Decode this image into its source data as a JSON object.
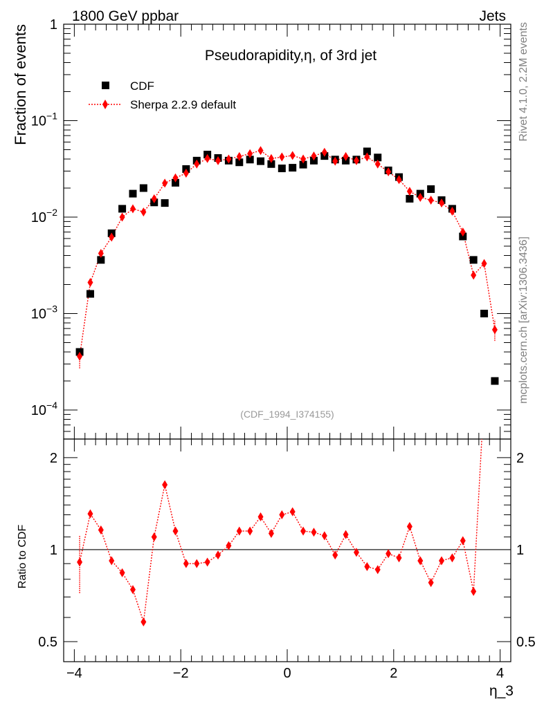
{
  "header": {
    "left": "1800 GeV ppbar",
    "right": "Jets"
  },
  "side_labels": {
    "rivet": "Rivet 4.1.0,  2.2M events",
    "source": "mcplots.cern.ch [arXiv:1306.3436]"
  },
  "colors": {
    "data": "#000000",
    "mc": "#ff0000",
    "side_text": "#808080"
  },
  "chart_data": [
    {
      "type": "scatter",
      "panel": "main",
      "title": "Pseudorapidity,η, of 3rd jet",
      "ylabel": "Fraction of events",
      "xlabel": "",
      "xlim": [
        -4.2,
        4.2
      ],
      "ylim": [
        5e-05,
        1
      ],
      "yscale": "log",
      "ytick_labels": [
        {
          "value": 1,
          "base": "1",
          "exp": ""
        },
        {
          "value": 0.1,
          "base": "10",
          "exp": "−1"
        },
        {
          "value": 0.01,
          "base": "10",
          "exp": "−2"
        },
        {
          "value": 0.001,
          "base": "10",
          "exp": "−3"
        },
        {
          "value": 0.0001,
          "base": "10",
          "exp": "−4"
        }
      ],
      "analysis_label": "(CDF_1994_I374155)",
      "legend": {
        "position": "top-left",
        "entries": [
          "CDF",
          "Sherpa 2.2.9 default"
        ]
      },
      "series": [
        {
          "name": "CDF",
          "marker": "square",
          "x": [
            -3.9,
            -3.7,
            -3.5,
            -3.3,
            -3.1,
            -2.9,
            -2.7,
            -2.5,
            -2.3,
            -2.1,
            -1.9,
            -1.7,
            -1.5,
            -1.3,
            -1.1,
            -0.9,
            -0.7,
            -0.5,
            -0.3,
            -0.1,
            0.1,
            0.3,
            0.5,
            0.7,
            0.9,
            1.1,
            1.3,
            1.5,
            1.7,
            1.9,
            2.1,
            2.3,
            2.5,
            2.7,
            2.9,
            3.1,
            3.3,
            3.5,
            3.7,
            3.9
          ],
          "values": [
            0.0004,
            0.0016,
            0.0036,
            0.0068,
            0.0122,
            0.0175,
            0.02,
            0.0142,
            0.014,
            0.0227,
            0.0315,
            0.0385,
            0.0445,
            0.041,
            0.0385,
            0.037,
            0.0395,
            0.038,
            0.0355,
            0.032,
            0.0325,
            0.035,
            0.0385,
            0.043,
            0.0395,
            0.0385,
            0.0395,
            0.048,
            0.0415,
            0.0305,
            0.026,
            0.0155,
            0.0175,
            0.0195,
            0.015,
            0.0122,
            0.0063,
            0.0036,
            0.001,
            0.0002
          ]
        },
        {
          "name": "Sherpa 2.2.9 default",
          "marker": "diamond",
          "line": "dotted",
          "x": [
            -3.9,
            -3.7,
            -3.5,
            -3.3,
            -3.1,
            -2.9,
            -2.7,
            -2.5,
            -2.3,
            -2.1,
            -1.9,
            -1.7,
            -1.5,
            -1.3,
            -1.1,
            -0.9,
            -0.7,
            -0.5,
            -0.3,
            -0.1,
            0.1,
            0.3,
            0.5,
            0.7,
            0.9,
            1.1,
            1.3,
            1.5,
            1.7,
            1.9,
            2.1,
            2.3,
            2.5,
            2.7,
            2.9,
            3.1,
            3.3,
            3.5,
            3.7,
            3.9
          ],
          "values": [
            0.00036,
            0.0021,
            0.0042,
            0.0062,
            0.01,
            0.0122,
            0.0113,
            0.0155,
            0.0225,
            0.0255,
            0.0285,
            0.0355,
            0.0405,
            0.0385,
            0.04,
            0.0425,
            0.0455,
            0.049,
            0.0405,
            0.042,
            0.0435,
            0.04,
            0.043,
            0.047,
            0.038,
            0.0425,
            0.0385,
            0.042,
            0.0355,
            0.0295,
            0.0245,
            0.0185,
            0.016,
            0.015,
            0.014,
            0.0115,
            0.007,
            0.0025,
            0.0033,
            0.00068
          ],
          "err_low": [
            0.00027,
            null,
            null,
            null,
            null,
            null,
            null,
            null,
            null,
            null,
            null,
            null,
            null,
            null,
            null,
            null,
            null,
            null,
            null,
            null,
            null,
            null,
            null,
            null,
            null,
            null,
            null,
            null,
            null,
            null,
            null,
            null,
            null,
            null,
            null,
            null,
            null,
            null,
            null,
            0.00052
          ],
          "err_high": [
            0.00043,
            null,
            null,
            null,
            null,
            null,
            null,
            null,
            null,
            null,
            null,
            null,
            null,
            null,
            null,
            null,
            null,
            null,
            null,
            null,
            null,
            null,
            null,
            null,
            null,
            null,
            null,
            null,
            null,
            null,
            null,
            null,
            null,
            null,
            null,
            null,
            null,
            null,
            null,
            0.00086
          ]
        }
      ]
    },
    {
      "type": "line",
      "panel": "ratio",
      "ylabel": "Ratio to CDF",
      "xlabel": "η_3",
      "xlim": [
        -4.2,
        4.2
      ],
      "ylim": [
        0.43,
        2.3
      ],
      "yscale": "log",
      "xtick_labels": [
        "−4",
        "−2",
        "0",
        "2",
        "4"
      ],
      "xtick_values": [
        -4,
        -2,
        0,
        2,
        4
      ],
      "ytick_labels": [
        "0.5",
        "1",
        "2"
      ],
      "ytick_values": [
        0.5,
        1,
        2
      ],
      "reference_line": 1,
      "series": [
        {
          "name": "Sherpa 2.2.9 default / CDF",
          "marker": "diamond",
          "line": "dotted",
          "x": [
            -3.9,
            -3.7,
            -3.5,
            -3.3,
            -3.1,
            -2.9,
            -2.7,
            -2.5,
            -2.3,
            -2.1,
            -1.9,
            -1.7,
            -1.5,
            -1.3,
            -1.1,
            -0.9,
            -0.7,
            -0.5,
            -0.3,
            -0.1,
            0.1,
            0.3,
            0.5,
            0.7,
            0.9,
            1.1,
            1.3,
            1.5,
            1.7,
            1.9,
            2.1,
            2.3,
            2.5,
            2.7,
            2.9,
            3.1,
            3.3,
            3.5
          ],
          "values": [
            0.91,
            1.31,
            1.16,
            0.92,
            0.84,
            0.74,
            0.58,
            1.1,
            1.63,
            1.15,
            0.9,
            0.9,
            0.91,
            0.96,
            1.03,
            1.15,
            1.15,
            1.28,
            1.13,
            1.3,
            1.33,
            1.15,
            1.14,
            1.11,
            0.96,
            1.12,
            0.98,
            0.88,
            0.86,
            0.97,
            0.94,
            1.19,
            0.92,
            0.78,
            0.92,
            0.94,
            1.07,
            0.73
          ],
          "err_first": [
            0.72,
            1.11
          ],
          "tail_x": [
            3.5,
            3.7
          ],
          "tail_values": [
            0.73,
            3.2
          ]
        }
      ]
    }
  ]
}
